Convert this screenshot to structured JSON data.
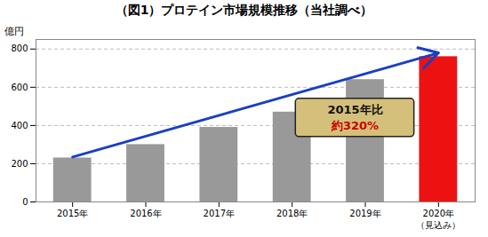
{
  "chart_data": {
    "type": "bar",
    "title": "（図1）プロテイン市場規模推移（当社調べ）",
    "ylabel": "億円",
    "categories": [
      "2015年",
      "2016年",
      "2017年",
      "2018年",
      "2019年",
      "2020年"
    ],
    "values": [
      230,
      300,
      390,
      470,
      640,
      760
    ],
    "colors": [
      "#999999",
      "#999999",
      "#999999",
      "#999999",
      "#999999",
      "#ee1111"
    ],
    "ylim": [
      0,
      850
    ],
    "yticks": [
      0,
      200,
      400,
      600,
      800
    ],
    "grid": true,
    "tick_note": {
      "category": "2020年",
      "text": "（見込み）"
    },
    "callout": {
      "color": "#d4c07a",
      "lines": [
        {
          "text": "2015年比",
          "color": "#111111"
        },
        {
          "text": "約320%",
          "color": "#cc0000"
        }
      ]
    },
    "arrow": {
      "from": {
        "category": "2015年",
        "value": 235
      },
      "to": {
        "category": "2020年",
        "value": 780
      },
      "color": "#1a3fc4"
    }
  }
}
